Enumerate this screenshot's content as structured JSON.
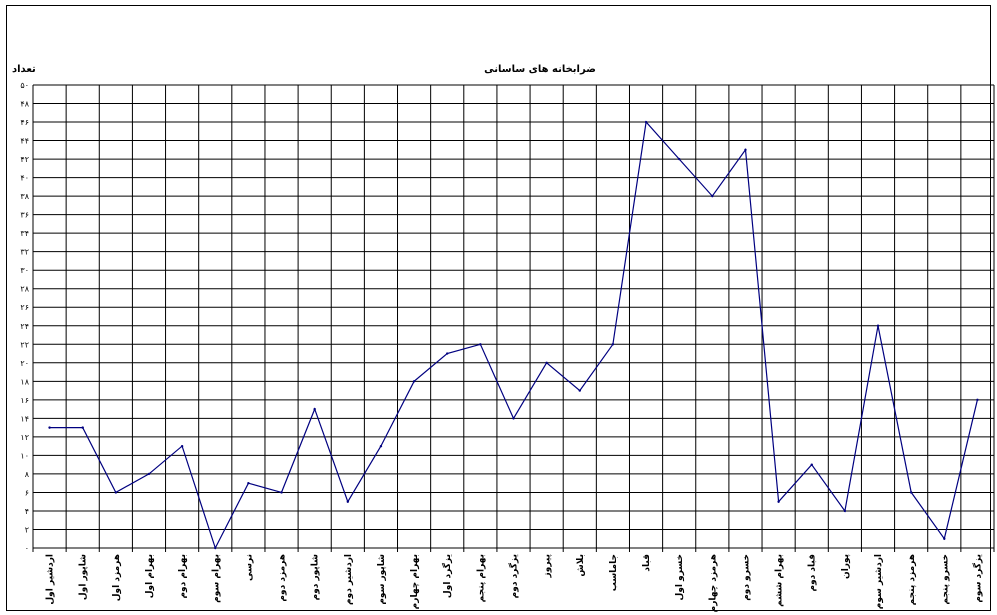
{
  "chart_data": {
    "type": "line",
    "title": "ضرابخانه های ساسانی",
    "ylabel": "تعداد",
    "xlabel": "",
    "ylim": [
      0,
      50
    ],
    "yticks": [
      "۰",
      "۲",
      "۴",
      "۶",
      "۸",
      "۱۰",
      "۱۲",
      "۱۴",
      "۱۶",
      "۱۸",
      "۲۰",
      "۲۲",
      "۲۴",
      "۲۶",
      "۲۸",
      "۳۰",
      "۳۲",
      "۳۴",
      "۳۶",
      "۳۸",
      "۴۰",
      "۴۲",
      "۴۴",
      "۴۶",
      "۴۸",
      "۵۰"
    ],
    "grid": true,
    "line_color": "#000080",
    "categories": [
      "اردشیر اول",
      "شاپور اول",
      "هرمزد اول",
      "بهرام اول",
      "بهرام دوم",
      "بهرام سوم",
      "نرسی",
      "هرمزد دوم",
      "شاپور دوم",
      "اردشیر دوم",
      "شاپور سوم",
      "بهرام چهارم",
      "یزگرد اول",
      "بهرام پنجم",
      "یزگرد دوم",
      "پیروز",
      "بلاش",
      "جاماسب",
      "قباد",
      "خسرو اول",
      "هرمزد چهارم",
      "خسرو دوم",
      "بهرام ششم",
      "قباد دوم",
      "پوران",
      "اردشیر سوم",
      "هرمزد پنجم",
      "خسرو پنجم",
      "یزگرد سوم"
    ],
    "values": [
      13,
      13,
      6,
      8,
      11,
      0,
      7,
      6,
      15,
      5,
      11,
      18,
      21,
      22,
      14,
      20,
      17,
      22,
      46,
      42,
      38,
      43,
      5,
      9,
      4,
      24,
      6,
      1,
      16
    ]
  }
}
